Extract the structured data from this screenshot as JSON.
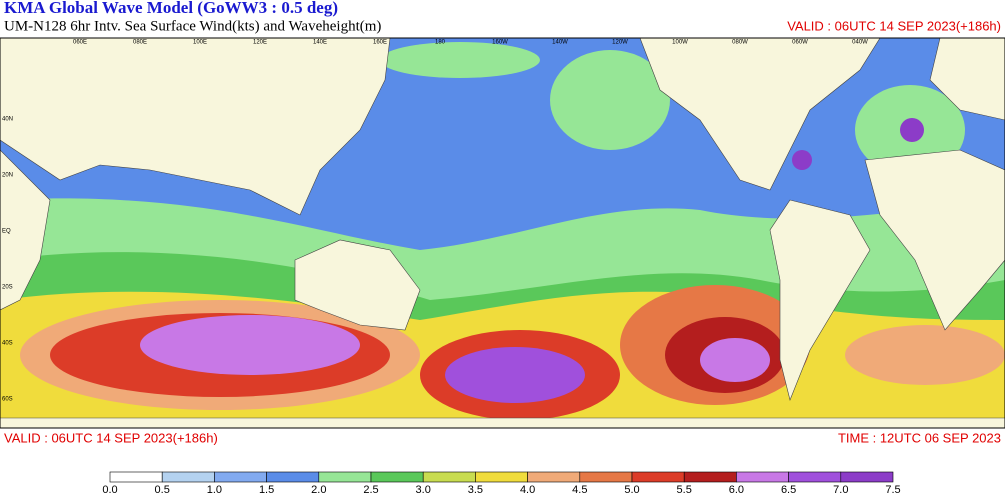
{
  "header": {
    "title": "KMA  Global Wave Model (GoWW3 : 0.5 deg)",
    "subtitle": "UM-N128  6hr Intv. Sea Surface Wind(kts) and Waveheight(m)",
    "valid": "VALID : 06UTC 14 SEP 2023(+186h)"
  },
  "footer": {
    "valid": "VALID : 06UTC 14 SEP 2023(+186h)",
    "time": "TIME : 12UTC 06 SEP 2023"
  },
  "map": {
    "lon_labels": [
      "060E",
      "080E",
      "100E",
      "120E",
      "140E",
      "160E",
      "180",
      "160W",
      "140W",
      "120W",
      "100W",
      "080W",
      "060W",
      "040W"
    ],
    "lat_labels": [
      "40N",
      "20N",
      "EQ",
      "20S",
      "40S",
      "60S"
    ]
  },
  "colorbar": {
    "bins": [
      {
        "value": 0,
        "label": "0.0"
      },
      0.5,
      {
        "value": 1,
        "label": "1.0"
      },
      1.5,
      {
        "value": 2,
        "label": "2.0"
      },
      2.5,
      {
        "value": 3,
        "label": "3.0"
      },
      3.5,
      {
        "value": 4,
        "label": "4.0"
      },
      4.5,
      {
        "value": 5,
        "label": "5.0"
      },
      5.5,
      {
        "value": 6,
        "label": "6.0"
      },
      6.5,
      {
        "value": 7,
        "label": "7.0"
      },
      7.5
    ],
    "colors": [
      "#ffffff",
      "#b4d2f0",
      "#82aaf0",
      "#5a8ce8",
      "#96e696",
      "#5ac85a",
      "#c8dc50",
      "#f0dc3c",
      "#f0aa78",
      "#e67846",
      "#dc3c28",
      "#b41e1e",
      "#c878e6",
      "#a050dc",
      "#8c3cc8"
    ]
  }
}
